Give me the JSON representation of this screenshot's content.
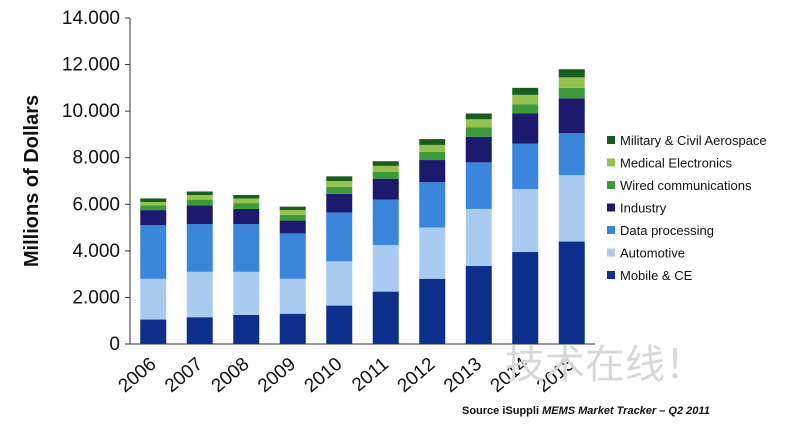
{
  "chart_data": {
    "type": "bar",
    "stacked": true,
    "ylabel": "Millions of Dollars",
    "ylim": [
      0,
      14000
    ],
    "yticks": [
      "0",
      "2.000",
      "4.000",
      "6.000",
      "8.000",
      "10.000",
      "12.000",
      "14.000"
    ],
    "categories": [
      "2006",
      "2007",
      "2008",
      "2009",
      "2010",
      "2011",
      "2012",
      "2013",
      "2014",
      "2015"
    ],
    "legend_position": "right",
    "grid": false,
    "series": [
      {
        "name": "Mobile & CE",
        "color": "#0b2f8a",
        "values": [
          1050,
          1150,
          1250,
          1300,
          1650,
          2250,
          2800,
          3350,
          3950,
          4400
        ]
      },
      {
        "name": "Automotive",
        "color": "#a9cbf1",
        "values": [
          1750,
          1950,
          1850,
          1500,
          1900,
          2000,
          2200,
          2450,
          2700,
          2850
        ]
      },
      {
        "name": "Data processing",
        "color": "#3a86dd",
        "values": [
          2300,
          2050,
          2050,
          1950,
          2100,
          1950,
          1950,
          2000,
          1950,
          1800
        ]
      },
      {
        "name": "Industry",
        "color": "#1c1a6e",
        "values": [
          650,
          800,
          650,
          550,
          800,
          900,
          950,
          1100,
          1300,
          1500
        ]
      },
      {
        "name": "Wired communications",
        "color": "#3c9a3a",
        "values": [
          200,
          250,
          250,
          250,
          300,
          300,
          350,
          400,
          400,
          450
        ]
      },
      {
        "name": "Medical Electronics",
        "color": "#93c24e",
        "values": [
          150,
          200,
          200,
          200,
          250,
          250,
          300,
          350,
          400,
          450
        ]
      },
      {
        "name": "Military & Civil Aerospace",
        "color": "#185c1e",
        "values": [
          150,
          150,
          150,
          150,
          200,
          200,
          250,
          250,
          300,
          350
        ]
      }
    ],
    "source_prefix": "Source iSuppli ",
    "source_italic": "MEMS Market Tracker – Q2 2011"
  },
  "watermark": "技术在线！"
}
